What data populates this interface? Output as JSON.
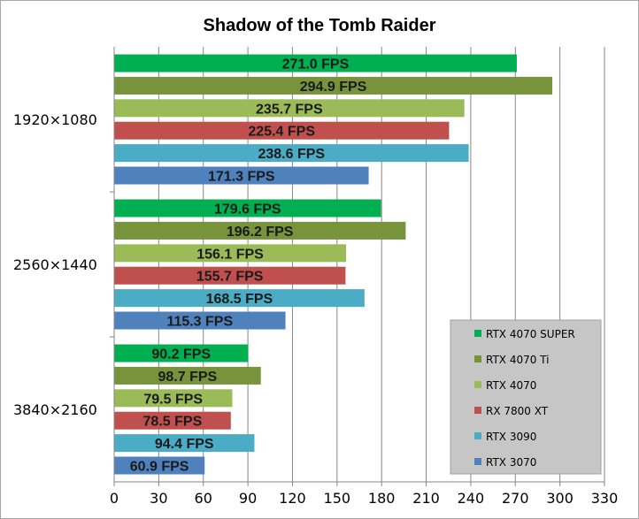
{
  "chart_data": {
    "type": "bar",
    "orientation": "horizontal",
    "title": "Shadow of the Tomb Raider",
    "xlabel": "",
    "ylabel": "",
    "categories": [
      "1920×1080",
      "2560×1440",
      "3840×2160"
    ],
    "xlim": [
      0,
      330
    ],
    "xticks": [
      0,
      30,
      60,
      90,
      120,
      150,
      180,
      210,
      240,
      270,
      300,
      330
    ],
    "grid": "vertical",
    "legend_position": "bottom-right",
    "series": [
      {
        "name": "RTX 4070 SUPER",
        "color": "#00b050",
        "values": [
          271.0,
          179.6,
          90.2
        ],
        "labels": [
          "271.0 FPS",
          "179.6 FPS",
          "90.2 FPS"
        ]
      },
      {
        "name": "RTX 4070 Ti",
        "color": "#77933c",
        "values": [
          294.9,
          196.2,
          98.7
        ],
        "labels": [
          "294.9 FPS",
          "196.2 FPS",
          "98.7 FPS"
        ]
      },
      {
        "name": "RTX 4070",
        "color": "#9bbb59",
        "values": [
          235.7,
          156.1,
          79.5
        ],
        "labels": [
          "235.7 FPS",
          "156.1 FPS",
          "79.5 FPS"
        ]
      },
      {
        "name": "RX 7800 XT",
        "color": "#c0504d",
        "values": [
          225.4,
          155.7,
          78.5
        ],
        "labels": [
          "225.4 FPS",
          "155.7 FPS",
          "78.5 FPS"
        ]
      },
      {
        "name": "RTX 3090",
        "color": "#4bacc6",
        "values": [
          238.6,
          168.5,
          94.4
        ],
        "labels": [
          "238.6 FPS",
          "168.5 FPS",
          "94.4 FPS"
        ]
      },
      {
        "name": "RTX 3070",
        "color": "#4f81bd",
        "values": [
          171.3,
          115.3,
          60.9
        ],
        "labels": [
          "171.3 FPS",
          "115.3 FPS",
          "60.9 FPS"
        ]
      }
    ]
  }
}
